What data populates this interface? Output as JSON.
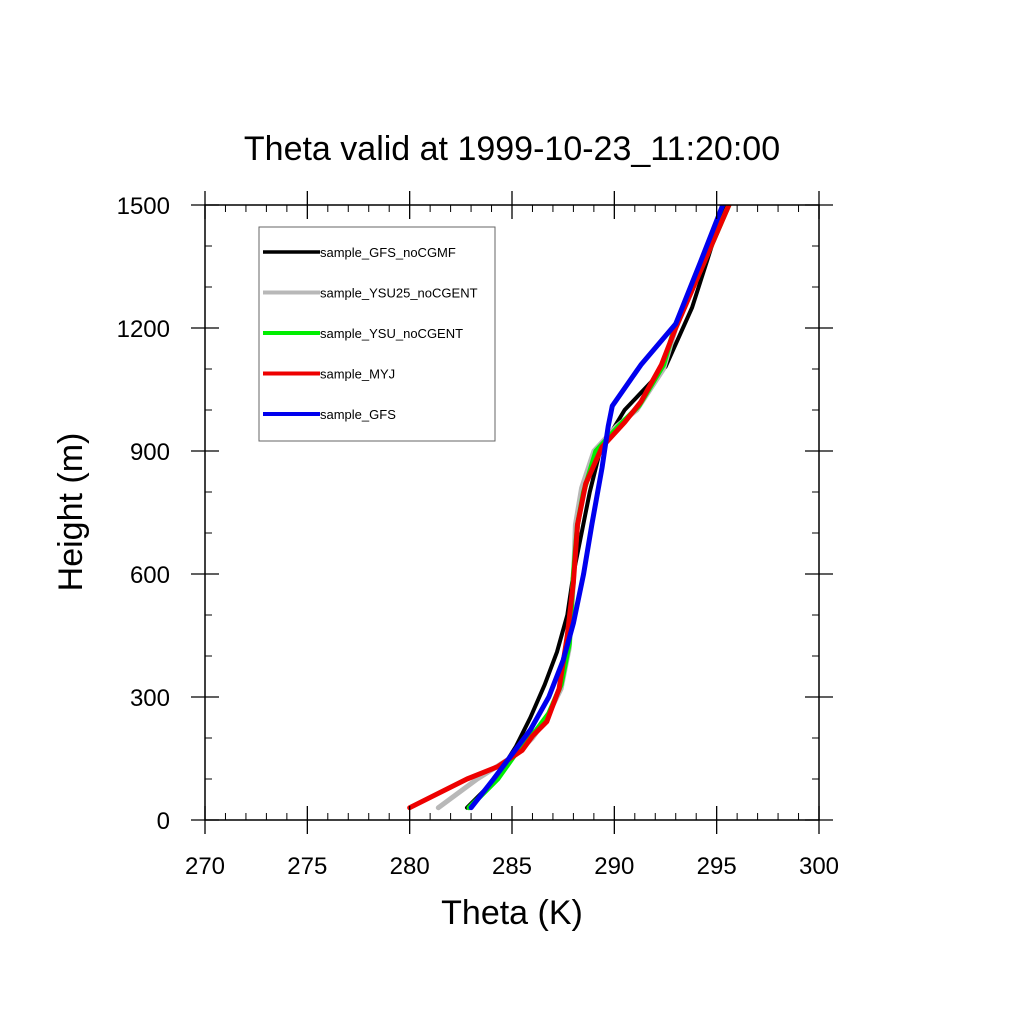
{
  "chart_data": {
    "type": "line",
    "title": "Theta valid at 1999-10-23_11:20:00",
    "xlabel": "Theta (K)",
    "ylabel": "Height (m)",
    "xlim": [
      270,
      300
    ],
    "ylim": [
      0,
      1500
    ],
    "x_ticks": [
      270,
      275,
      280,
      285,
      290,
      295,
      300
    ],
    "y_ticks": [
      0,
      300,
      600,
      900,
      1200,
      1500
    ],
    "x_tick_labels": [
      "270",
      "275",
      "280",
      "285",
      "290",
      "295",
      "300"
    ],
    "y_tick_labels": [
      "0",
      "300",
      "600",
      "900",
      "1200",
      "1500"
    ],
    "x_minor_step": 1,
    "y_minor_step": 100,
    "grid": false,
    "legend_position": "top-left",
    "series": [
      {
        "name": "sample_GFS_noCGMF",
        "color": "#000000",
        "points": [
          [
            282.8,
            30
          ],
          [
            284.2,
            100
          ],
          [
            285.2,
            180
          ],
          [
            285.9,
            250
          ],
          [
            286.6,
            330
          ],
          [
            287.2,
            410
          ],
          [
            287.7,
            500
          ],
          [
            288.0,
            600
          ],
          [
            288.4,
            700
          ],
          [
            288.8,
            800
          ],
          [
            289.3,
            900
          ],
          [
            290.5,
            1000
          ],
          [
            292.5,
            1105
          ],
          [
            293.8,
            1250
          ],
          [
            295.4,
            1500
          ]
        ]
      },
      {
        "name": "sample_YSU25_noCGENT",
        "color": "#b8b8b8",
        "points": [
          [
            281.4,
            30
          ],
          [
            283.3,
            100
          ],
          [
            285.2,
            160
          ],
          [
            286.0,
            200
          ],
          [
            286.7,
            250
          ],
          [
            287.4,
            320
          ],
          [
            287.8,
            420
          ],
          [
            288.0,
            580
          ],
          [
            288.1,
            720
          ],
          [
            288.4,
            810
          ],
          [
            289.0,
            900
          ],
          [
            290.1,
            960
          ],
          [
            291.1,
            1000
          ],
          [
            292.4,
            1100
          ],
          [
            293.0,
            1200
          ],
          [
            294.2,
            1340
          ],
          [
            295.6,
            1500
          ]
        ]
      },
      {
        "name": "sample_YSU_noCGENT",
        "color": "#00ee00",
        "points": [
          [
            282.9,
            30
          ],
          [
            284.3,
            100
          ],
          [
            285.3,
            170
          ],
          [
            286.2,
            220
          ],
          [
            286.8,
            260
          ],
          [
            287.4,
            330
          ],
          [
            287.8,
            430
          ],
          [
            288.0,
            600
          ],
          [
            288.2,
            720
          ],
          [
            288.5,
            800
          ],
          [
            289.1,
            900
          ],
          [
            290.2,
            960
          ],
          [
            291.2,
            1010
          ],
          [
            292.4,
            1110
          ],
          [
            293.0,
            1210
          ],
          [
            294.3,
            1350
          ],
          [
            295.6,
            1500
          ]
        ]
      },
      {
        "name": "sample_MYJ",
        "color": "#ee0000",
        "points": [
          [
            280.0,
            30
          ],
          [
            282.8,
            100
          ],
          [
            284.3,
            130
          ],
          [
            285.5,
            170
          ],
          [
            286.0,
            205
          ],
          [
            286.7,
            240
          ],
          [
            287.3,
            320
          ],
          [
            287.7,
            450
          ],
          [
            288.0,
            580
          ],
          [
            288.2,
            720
          ],
          [
            288.6,
            820
          ],
          [
            289.4,
            910
          ],
          [
            290.5,
            970
          ],
          [
            291.3,
            1020
          ],
          [
            292.3,
            1110
          ],
          [
            293.0,
            1200
          ],
          [
            294.3,
            1350
          ],
          [
            295.6,
            1500
          ]
        ]
      },
      {
        "name": "sample_GFS",
        "color": "#0000ee",
        "points": [
          [
            283.0,
            30
          ],
          [
            284.1,
            100
          ],
          [
            285.0,
            160
          ],
          [
            285.9,
            220
          ],
          [
            286.8,
            300
          ],
          [
            287.5,
            390
          ],
          [
            288.0,
            480
          ],
          [
            288.5,
            600
          ],
          [
            288.9,
            720
          ],
          [
            289.4,
            860
          ],
          [
            289.7,
            960
          ],
          [
            289.9,
            1010
          ],
          [
            291.3,
            1110
          ],
          [
            293.0,
            1210
          ],
          [
            294.2,
            1360
          ],
          [
            295.3,
            1500
          ]
        ]
      }
    ]
  }
}
